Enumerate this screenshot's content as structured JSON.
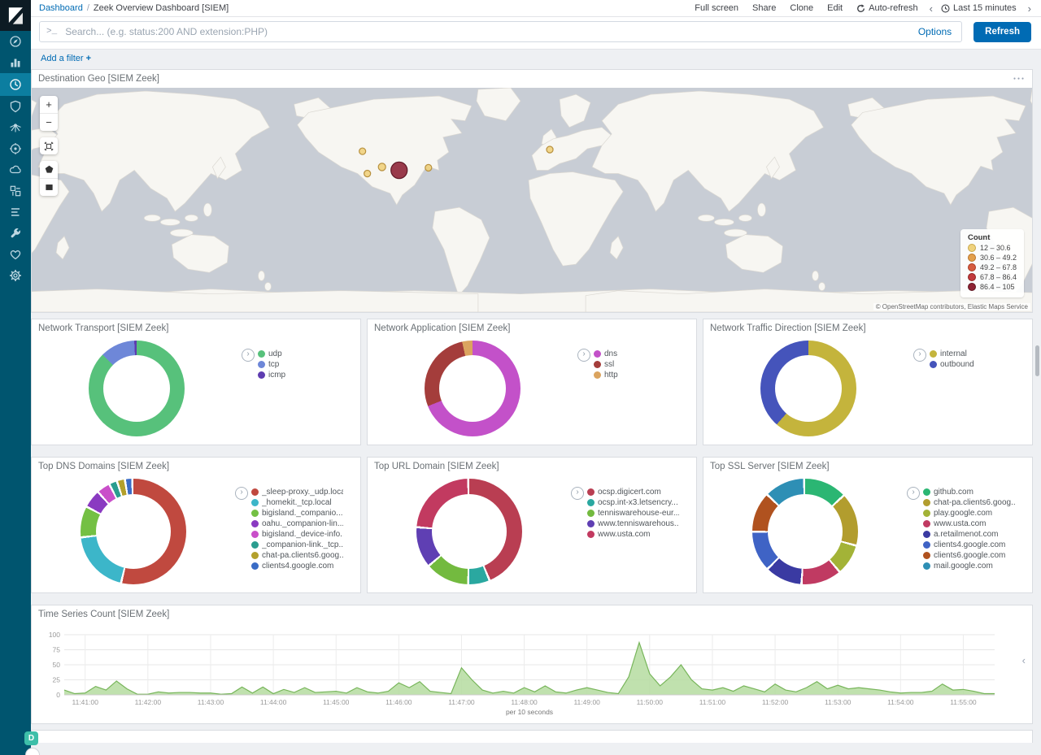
{
  "chrome": {
    "breadcrumb": {
      "root": "Dashboard",
      "separator": "/",
      "current": "Zeek Overview Dashboard [SIEM]"
    },
    "top_menu": {
      "full_screen": "Full screen",
      "share": "Share",
      "clone": "Clone",
      "edit": "Edit",
      "auto_refresh": "Auto-refresh",
      "time_range": "Last 15 minutes"
    },
    "query_bar": {
      "placeholder": "Search... (e.g. status:200 AND extension:PHP)",
      "options": "Options",
      "refresh": "Refresh"
    },
    "filter_bar": {
      "add_filter": "Add a filter",
      "plus": "+"
    },
    "space_badge": "D"
  },
  "sidebar": {
    "icons": [
      {
        "name": "compass",
        "selected": false
      },
      {
        "name": "bar-chart",
        "selected": false
      },
      {
        "name": "dashboard-clock",
        "selected": true
      },
      {
        "name": "shield",
        "selected": false
      },
      {
        "name": "network-rays",
        "selected": false
      },
      {
        "name": "target",
        "selected": false
      },
      {
        "name": "cloud",
        "selected": false
      },
      {
        "name": "infrastructure",
        "selected": false
      },
      {
        "name": "logs",
        "selected": false
      },
      {
        "name": "wrench",
        "selected": false
      },
      {
        "name": "heartbeat",
        "selected": false
      },
      {
        "name": "gear",
        "selected": false
      }
    ]
  },
  "chart_data": [
    {
      "type": "pie",
      "title": "Network Transport [SIEM Zeek]",
      "gap": false,
      "slices": [
        {
          "label": "udp",
          "value": 87.5,
          "color": "#57c17b"
        },
        {
          "label": "tcp",
          "value": 11.7,
          "color": "#6e87d8"
        },
        {
          "label": "icmp",
          "value": 0.8,
          "color": "#5e3cb0"
        }
      ]
    },
    {
      "type": "pie",
      "title": "Network Application [SIEM Zeek]",
      "gap": false,
      "slices": [
        {
          "label": "dns",
          "value": 69,
          "color": "#c351c9"
        },
        {
          "label": "ssl",
          "value": 27.5,
          "color": "#a43d3b"
        },
        {
          "label": "http",
          "value": 3.5,
          "color": "#dba45f"
        }
      ]
    },
    {
      "type": "pie",
      "title": "Network Traffic Direction [SIEM Zeek]",
      "gap": false,
      "slices": [
        {
          "label": "internal",
          "value": 61.5,
          "color": "#c4b43c"
        },
        {
          "label": "outbound",
          "value": 38.5,
          "color": "#4554bb"
        }
      ]
    },
    {
      "type": "pie",
      "title": "Top DNS Domains [SIEM Zeek]",
      "gap": true,
      "slices": [
        {
          "label": "_sleep-proxy._udp.local",
          "value": 54,
          "color": "#c0493f"
        },
        {
          "label": "_homekit._tcp.local",
          "value": 19,
          "color": "#3cb6c9"
        },
        {
          "label": "bigisland._companio...",
          "value": 9,
          "color": "#74c044"
        },
        {
          "label": "oahu._companion-lin...",
          "value": 5,
          "color": "#8a3ac1"
        },
        {
          "label": "bigisland._device-info...",
          "value": 3.5,
          "color": "#c94fc9"
        },
        {
          "label": "_companion-link._tcp....",
          "value": 1.8,
          "color": "#2a9d8f"
        },
        {
          "label": "chat-pa.clients6.goog...",
          "value": 1.8,
          "color": "#b3a02c"
        },
        {
          "label": "clients4.google.com",
          "value": 1.6,
          "color": "#3a6cc6"
        }
      ]
    },
    {
      "type": "pie",
      "title": "Top URL Domain [SIEM Zeek]",
      "gap": true,
      "slices": [
        {
          "label": "ocsp.digicert.com",
          "value": 44,
          "color": "#b93e52"
        },
        {
          "label": "ocsp.int-x3.letsencry...",
          "value": 6,
          "color": "#2aa8a0"
        },
        {
          "label": "tenniswarehouse-eur...",
          "value": 13,
          "color": "#73ba3f"
        },
        {
          "label": "www.tenniswarehous...",
          "value": 12,
          "color": "#5f3fb3"
        },
        {
          "label": "www.usta.com",
          "value": 23,
          "color": "#c23a60"
        }
      ]
    },
    {
      "type": "pie",
      "title": "Top SSL Server [SIEM Zeek]",
      "gap": true,
      "slices": [
        {
          "label": "github.com",
          "value": 13,
          "color": "#2bb673"
        },
        {
          "label": "chat-pa.clients6.goog...",
          "value": 16,
          "color": "#b29d2e"
        },
        {
          "label": "play.google.com",
          "value": 9,
          "color": "#a3b337"
        },
        {
          "label": "www.usta.com",
          "value": 12,
          "color": "#c03a62"
        },
        {
          "label": "a.retailmenot.com",
          "value": 11,
          "color": "#3a3aa2"
        },
        {
          "label": "clients4.google.com",
          "value": 12,
          "color": "#3f63c5"
        },
        {
          "label": "clients6.google.com",
          "value": 12,
          "color": "#b0521f"
        },
        {
          "label": "mail.google.com",
          "value": 12,
          "color": "#2e8fb5"
        }
      ]
    },
    {
      "type": "area",
      "title": "Time Series Count [SIEM Zeek]",
      "xlabel": "per 10 seconds",
      "ylim": [
        0,
        100
      ],
      "yticks": [
        0,
        25,
        50,
        75,
        100
      ],
      "x_start": "11:40:40",
      "interval_seconds": 10,
      "tick_first": 2,
      "tick_step": 6,
      "x_ticks": [
        "11:41:00",
        "11:42:00",
        "11:43:00",
        "11:44:00",
        "11:45:00",
        "11:46:00",
        "11:47:00",
        "11:48:00",
        "11:49:00",
        "11:50:00",
        "11:51:00",
        "11:52:00",
        "11:53:00",
        "11:54:00",
        "11:55:00"
      ],
      "line_color": "#77b55a",
      "fill_color": "#b5dca0",
      "values": [
        8,
        2,
        3,
        14,
        8,
        23,
        10,
        1,
        1,
        5,
        3,
        4,
        4,
        3,
        3,
        1,
        2,
        13,
        3,
        13,
        2,
        9,
        4,
        12,
        4,
        5,
        6,
        3,
        12,
        5,
        3,
        6,
        20,
        12,
        22,
        6,
        4,
        2,
        45,
        25,
        8,
        3,
        6,
        3,
        12,
        5,
        15,
        5,
        3,
        8,
        12,
        8,
        4,
        2,
        30,
        87,
        35,
        15,
        30,
        50,
        25,
        10,
        8,
        12,
        6,
        15,
        10,
        5,
        18,
        8,
        5,
        12,
        22,
        10,
        16,
        10,
        12,
        10,
        8,
        5,
        3,
        4,
        4,
        6,
        18,
        8,
        9,
        6,
        2,
        2
      ]
    },
    {
      "type": "map",
      "title": "Destination Geo [SIEM Zeek]",
      "legend_title": "Count",
      "bins": [
        {
          "range": "12 – 30.6",
          "color": "#EFD27D",
          "stroke": "#C9A84C"
        },
        {
          "range": "30.6 – 49.2",
          "color": "#E3A04C",
          "stroke": "#B9742B"
        },
        {
          "range": "49.2 – 67.8",
          "color": "#D65C3F",
          "stroke": "#A93A26"
        },
        {
          "range": "67.8 – 86.4",
          "color": "#C23A3C",
          "stroke": "#8E2422"
        },
        {
          "range": "86.4 – 105",
          "color": "#8E2233",
          "stroke": "#5E1520"
        }
      ],
      "points": [
        {
          "x": 406,
          "y": 77,
          "r": 4,
          "fill": "#EFD27D",
          "stroke": "#B8913F"
        },
        {
          "x": 412,
          "y": 104,
          "r": 4,
          "fill": "#EFD27D",
          "stroke": "#B8913F"
        },
        {
          "x": 430,
          "y": 96,
          "r": 4.5,
          "fill": "#EFD27D",
          "stroke": "#B8913F"
        },
        {
          "x": 451,
          "y": 100,
          "r": 10,
          "fill": "#8E2639",
          "stroke": "#5F1826"
        },
        {
          "x": 487,
          "y": 97,
          "r": 4,
          "fill": "#EFD27D",
          "stroke": "#B8913F"
        },
        {
          "x": 636,
          "y": 75,
          "r": 4,
          "fill": "#EFD27D",
          "stroke": "#B8913F"
        }
      ],
      "attribution": "© OpenStreetMap contributors, Elastic Maps Service"
    }
  ]
}
